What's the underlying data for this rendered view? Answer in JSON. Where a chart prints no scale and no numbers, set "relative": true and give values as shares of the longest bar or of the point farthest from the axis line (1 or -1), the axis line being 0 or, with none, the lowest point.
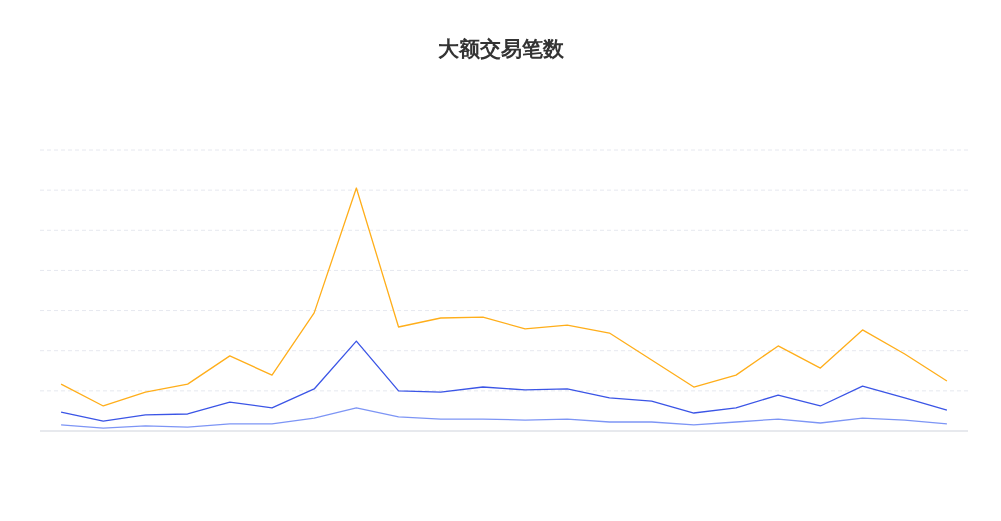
{
  "chart_data": {
    "type": "line",
    "title": "大额交易笔数",
    "relative": true,
    "grid": "y",
    "legend": false,
    "marker": "none",
    "line_style": "solid",
    "categories": [
      null,
      null,
      null,
      null,
      null,
      null,
      null,
      null,
      null,
      null,
      null,
      null,
      null,
      null,
      null,
      null,
      null,
      null,
      null,
      null,
      null,
      null
    ],
    "series": [
      {
        "color": "#ffae1a",
        "values": [
          0.193,
          0.103,
          0.16,
          0.193,
          0.309,
          0.23,
          0.486,
          1,
          0.428,
          0.465,
          0.469,
          0.42,
          0.436,
          0.403,
          0.292,
          0.181,
          0.23,
          0.35,
          0.259,
          0.416,
          0.317,
          0.206
        ]
      },
      {
        "color": "#3b55e6",
        "values": [
          0.078,
          0.041,
          0.066,
          0.07,
          0.119,
          0.095,
          0.173,
          0.37,
          0.165,
          0.16,
          0.181,
          0.169,
          0.173,
          0.136,
          0.123,
          0.074,
          0.095,
          0.148,
          0.103,
          0.185,
          0.136,
          0.086
        ]
      },
      {
        "color": "#7d95f5",
        "values": [
          0.025,
          0.012,
          0.021,
          0.016,
          0.029,
          0.029,
          0.053,
          0.095,
          0.058,
          0.049,
          0.049,
          0.045,
          0.049,
          0.037,
          0.037,
          0.025,
          0.037,
          0.049,
          0.033,
          0.053,
          0.045,
          0.029
        ]
      }
    ]
  }
}
